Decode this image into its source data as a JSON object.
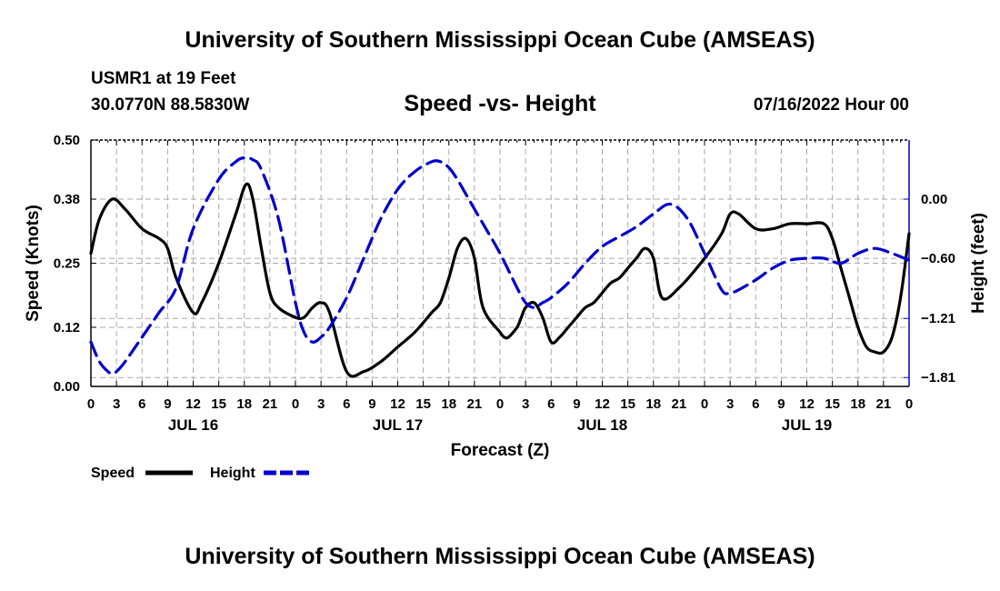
{
  "header": {
    "title": "University of Southern Mississippi Ocean Cube (AMSEAS)",
    "station": "USMR1 at 19 Feet",
    "coords": "30.0770N  88.5830W",
    "chart_title": "Speed -vs- Height",
    "run_time": "07/16/2022 Hour 00"
  },
  "footer": {
    "title": "University of Southern Mississippi Ocean Cube (AMSEAS)"
  },
  "colors": {
    "speed": "#000000",
    "height": "#0000cc",
    "grid": "#aaaaaa"
  },
  "chart_data": {
    "type": "line",
    "title": "Speed -vs- Height",
    "xlabel": "Forecast (Z)",
    "ylabel": "Speed (Knots)",
    "y2label": "Height (feet)",
    "xlim": [
      0,
      96
    ],
    "ylim": [
      0,
      0.5
    ],
    "y2lim": [
      -1.9,
      0.6
    ],
    "x_tick_labels": [
      "0",
      "3",
      "6",
      "9",
      "12",
      "15",
      "18",
      "21",
      "0",
      "3",
      "6",
      "9",
      "12",
      "15",
      "18",
      "21",
      "0",
      "3",
      "6",
      "9",
      "12",
      "15",
      "18",
      "21",
      "0",
      "3",
      "6",
      "9",
      "12",
      "15",
      "18",
      "21",
      "0"
    ],
    "y_ticks": [
      0.0,
      0.12,
      0.25,
      0.38,
      0.5
    ],
    "y_tick_labels": [
      "0.00",
      "0.12",
      "0.25",
      "0.38",
      "0.50"
    ],
    "y2_ticks": [
      -1.81,
      -1.21,
      -0.6,
      0.0
    ],
    "y2_tick_labels": [
      "−1.81",
      "−1.21",
      "−0.60",
      "0.00"
    ],
    "day_labels": [
      {
        "x": 12,
        "label": "JUL 16"
      },
      {
        "x": 36,
        "label": "JUL 17"
      },
      {
        "x": 60,
        "label": "JUL 18"
      },
      {
        "x": 84,
        "label": "JUL 19"
      }
    ],
    "legend_location": "bottom-left",
    "series": [
      {
        "name": "Speed",
        "axis": "left",
        "style": "solid",
        "x": [
          0,
          1,
          2.5,
          4,
          6,
          8,
          9,
          10,
          12,
          13,
          15,
          17,
          18.2,
          19,
          20,
          21,
          22,
          24,
          25,
          26,
          27,
          28,
          30,
          32,
          34,
          36,
          38,
          40,
          41,
          42,
          43,
          44,
          45,
          46,
          48,
          48.5,
          49,
          50,
          50.5,
          51,
          52,
          53,
          54,
          55,
          56,
          57,
          58,
          59,
          60,
          61,
          62,
          63,
          64,
          65,
          66,
          67,
          69,
          72,
          74,
          75,
          76,
          78,
          80,
          82,
          84,
          86,
          87,
          88,
          89,
          90,
          91,
          92,
          93,
          94,
          95,
          96
        ],
        "values": [
          0.27,
          0.34,
          0.38,
          0.36,
          0.32,
          0.3,
          0.28,
          0.22,
          0.15,
          0.17,
          0.25,
          0.35,
          0.41,
          0.38,
          0.28,
          0.19,
          0.16,
          0.14,
          0.14,
          0.16,
          0.17,
          0.15,
          0.03,
          0.03,
          0.05,
          0.08,
          0.11,
          0.15,
          0.17,
          0.22,
          0.28,
          0.3,
          0.26,
          0.16,
          0.11,
          0.1,
          0.1,
          0.12,
          0.14,
          0.16,
          0.17,
          0.14,
          0.09,
          0.1,
          0.12,
          0.14,
          0.16,
          0.17,
          0.19,
          0.21,
          0.22,
          0.24,
          0.26,
          0.28,
          0.26,
          0.18,
          0.2,
          0.26,
          0.31,
          0.35,
          0.35,
          0.32,
          0.32,
          0.33,
          0.33,
          0.33,
          0.3,
          0.24,
          0.18,
          0.12,
          0.08,
          0.07,
          0.07,
          0.1,
          0.18,
          0.31
        ]
      },
      {
        "name": "Height",
        "axis": "right",
        "style": "dashed",
        "x": [
          0,
          1,
          2,
          2.5,
          3,
          4,
          6,
          8,
          10,
          12,
          15,
          17,
          18,
          19,
          20,
          22,
          24,
          25,
          26,
          27,
          28,
          30,
          32,
          34,
          36,
          38,
          40,
          41,
          42,
          43,
          44,
          46,
          48,
          50,
          51,
          52,
          53,
          54,
          56,
          58,
          60,
          62,
          64,
          66,
          68,
          70,
          72,
          74,
          75,
          76,
          78,
          80,
          82,
          84,
          86,
          88,
          90,
          92,
          94,
          96
        ],
        "values": [
          -1.45,
          -1.65,
          -1.75,
          -1.77,
          -1.75,
          -1.65,
          -1.4,
          -1.15,
          -0.9,
          -0.3,
          0.2,
          0.38,
          0.42,
          0.4,
          0.3,
          -0.2,
          -1.05,
          -1.35,
          -1.45,
          -1.4,
          -1.3,
          -1.0,
          -0.6,
          -0.2,
          0.1,
          0.28,
          0.38,
          0.38,
          0.32,
          0.2,
          0.05,
          -0.25,
          -0.55,
          -0.9,
          -1.05,
          -1.1,
          -1.05,
          -1.0,
          -0.85,
          -0.65,
          -0.48,
          -0.38,
          -0.28,
          -0.15,
          -0.05,
          -0.2,
          -0.55,
          -0.92,
          -0.95,
          -0.92,
          -0.82,
          -0.7,
          -0.62,
          -0.6,
          -0.6,
          -0.65,
          -0.55,
          -0.5,
          -0.55,
          -0.62
        ]
      }
    ]
  }
}
